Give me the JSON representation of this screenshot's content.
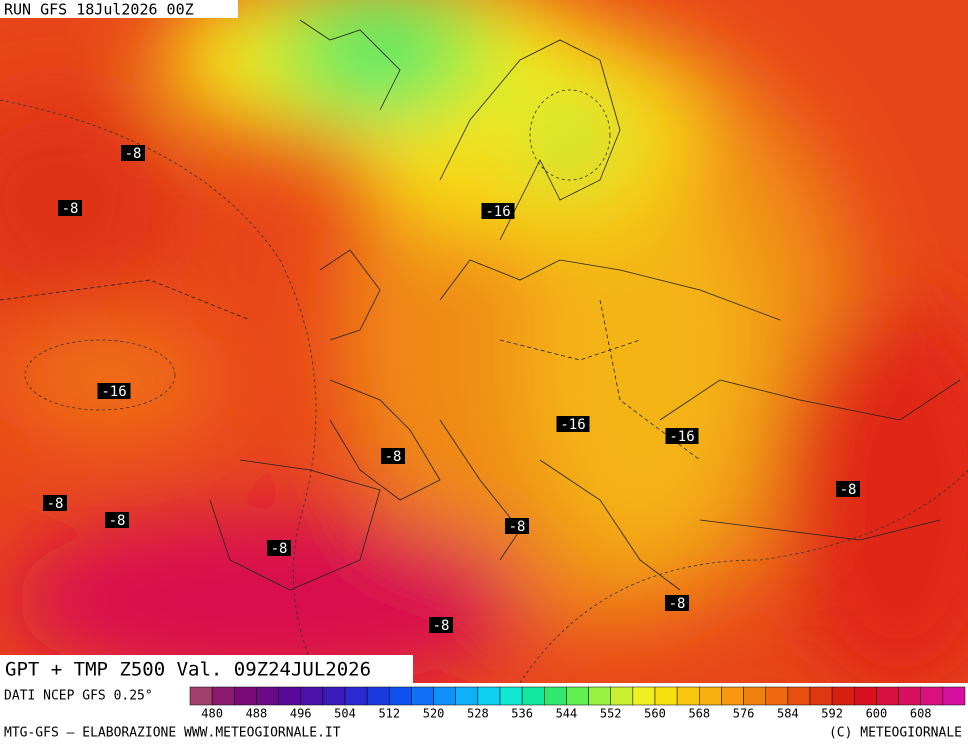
{
  "header": {
    "run": "RUN GFS 18Jul2026 00Z"
  },
  "map": {
    "title": "GPT + TMP Z500 Val. 09Z24JUL2026",
    "contour_labels": [
      "-8",
      "-8",
      "-16",
      "-16",
      "-16",
      "-16",
      "-8",
      "-8",
      "-8",
      "-8",
      "-8",
      "-8",
      "-8",
      "-8"
    ]
  },
  "legend": {
    "source": "DATI NCEP GFS 0.25°",
    "colors": [
      "#a2406e",
      "#8c1a6e",
      "#7a0a78",
      "#6a0a88",
      "#5a0a98",
      "#4a12a8",
      "#3a1ab8",
      "#2a2ad0",
      "#1a3ae0",
      "#1050f0",
      "#1070f8",
      "#1090f8",
      "#10b0f8",
      "#10d0f0",
      "#10e8d0",
      "#10e8a0",
      "#30e870",
      "#60f050",
      "#98f040",
      "#c8f030",
      "#f0f020",
      "#f8e010",
      "#f8c810",
      "#f8b010",
      "#f89810",
      "#f08010",
      "#f06810",
      "#e85010",
      "#e03810",
      "#d82010",
      "#d81020",
      "#d81040",
      "#d81060",
      "#d81080",
      "#d810a0"
    ],
    "labels": [
      480,
      488,
      496,
      504,
      512,
      520,
      528,
      536,
      544,
      552,
      560,
      568,
      576,
      584,
      592,
      600,
      608
    ]
  },
  "footer": {
    "left": "MTG-GFS — ELABORAZIONE WWW.METEOGIORNALE.IT",
    "right": "(C) METEOGIORNALE"
  }
}
